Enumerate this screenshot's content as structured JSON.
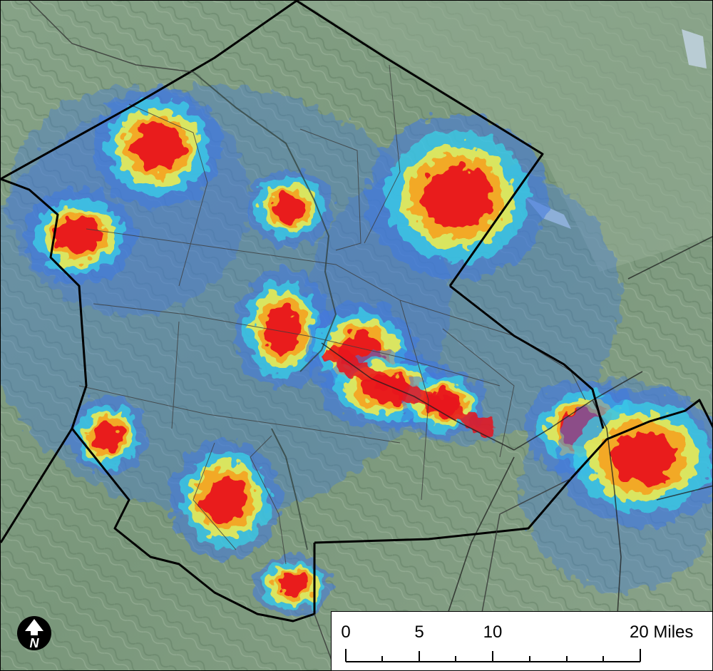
{
  "scale_bar": {
    "labels": [
      "0",
      "5",
      "10",
      "20 Miles"
    ],
    "unit": "Miles"
  },
  "north_arrow": {
    "letter": "N",
    "icon": "north-arrow-icon"
  },
  "legend_colors": {
    "terrain": "#7d9a7f",
    "low": "#3f78e0",
    "low_mid": "#36d6e8",
    "mid": "#f6ec4a",
    "mid_high": "#f5a21f",
    "high": "#e8141c",
    "boundary": "#000000"
  }
}
